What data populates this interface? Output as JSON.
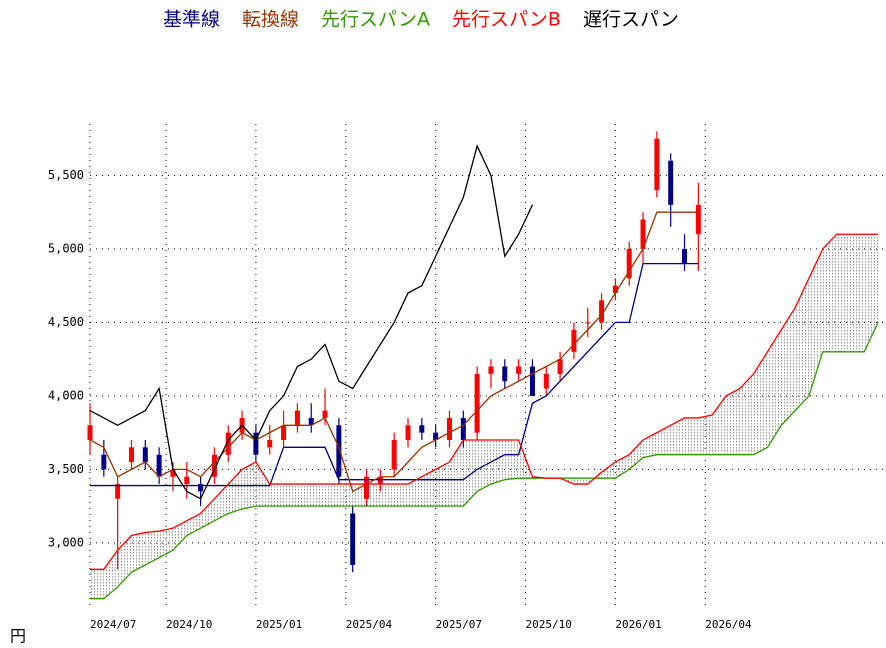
{
  "chart_data": {
    "type": "candlestick",
    "y_label": "円",
    "x": [
      0,
      2,
      4,
      6,
      8,
      10,
      12,
      14,
      16,
      18,
      20,
      22,
      24,
      26,
      28,
      30,
      32,
      34,
      36,
      38,
      40,
      42,
      44,
      46,
      48,
      50,
      52,
      54,
      56,
      58,
      60,
      62,
      64,
      66,
      68,
      70,
      72,
      74,
      76,
      78,
      80,
      82,
      84,
      86,
      88,
      90,
      92,
      94,
      96,
      98,
      100,
      102,
      104,
      106,
      108,
      110,
      112,
      114
    ],
    "xlim": [
      0,
      115
    ],
    "xticks": [
      {
        "value": 0,
        "label": "2024/07"
      },
      {
        "value": 11,
        "label": "2024/10"
      },
      {
        "value": 24,
        "label": "2025/01"
      },
      {
        "value": 37,
        "label": "2025/04"
      },
      {
        "value": 50,
        "label": "2025/07"
      },
      {
        "value": 63,
        "label": "2025/10"
      },
      {
        "value": 76,
        "label": "2026/01"
      },
      {
        "value": 89,
        "label": "2026/04"
      }
    ],
    "ylim": [
      2550,
      5850
    ],
    "yticks": [
      {
        "value": 3000,
        "label": "3,000"
      },
      {
        "value": 3500,
        "label": "3,500"
      },
      {
        "value": 4000,
        "label": "4,000"
      },
      {
        "value": 4500,
        "label": "4,500"
      },
      {
        "value": 5000,
        "label": "5,000"
      },
      {
        "value": 5500,
        "label": "5,500"
      }
    ],
    "grid": true,
    "up_color": "#ff0000",
    "down_color": "#000080",
    "candles": {
      "open": [
        3700,
        3600,
        3300,
        3550,
        3650,
        3600,
        3450,
        3400,
        3400,
        3450,
        3600,
        3750,
        3750,
        3650,
        3700,
        3800,
        3850,
        3850,
        3800,
        3200,
        3300,
        3400,
        3500,
        3700,
        3800,
        3750,
        3700,
        3850,
        3750,
        4150,
        4200,
        4150,
        4200,
        4050,
        4150,
        4300,
        4500,
        4500,
        4700,
        4800,
        5000,
        5400,
        5600,
        5000,
        5100,
        null,
        null,
        null,
        null,
        null,
        null,
        null,
        null,
        null,
        null,
        null,
        null,
        null
      ],
      "high": [
        3950,
        3700,
        3450,
        3700,
        3700,
        3650,
        3550,
        3550,
        3450,
        3650,
        3800,
        3900,
        3800,
        3800,
        3900,
        3950,
        3950,
        4050,
        3850,
        3250,
        3500,
        3500,
        3750,
        3850,
        3850,
        3800,
        3900,
        3900,
        4200,
        4250,
        4250,
        4250,
        4250,
        4200,
        4300,
        4500,
        4600,
        4700,
        4800,
        5050,
        5250,
        5800,
        5650,
        5100,
        5450,
        null,
        null,
        null,
        null,
        null,
        null,
        null,
        null,
        null,
        null,
        null,
        null,
        null
      ],
      "low": [
        3600,
        3450,
        2820,
        3500,
        3500,
        3400,
        3350,
        3300,
        3250,
        3400,
        3550,
        3700,
        3550,
        3600,
        3650,
        3750,
        3750,
        3800,
        3400,
        2800,
        3250,
        3350,
        3450,
        3650,
        3700,
        3650,
        3650,
        3650,
        3700,
        4050,
        4050,
        4100,
        4000,
        4000,
        4100,
        4250,
        4400,
        4450,
        4650,
        4750,
        4900,
        5350,
        5150,
        4850,
        4850,
        null,
        null,
        null,
        null,
        null,
        null,
        null,
        null,
        null,
        null,
        null,
        null,
        null
      ],
      "close": [
        3800,
        3500,
        3400,
        3650,
        3550,
        3450,
        3500,
        3450,
        3350,
        3600,
        3750,
        3850,
        3600,
        3700,
        3800,
        3900,
        3800,
        3900,
        3450,
        2850,
        3450,
        3450,
        3700,
        3800,
        3750,
        3700,
        3850,
        3700,
        4150,
        4200,
        4100,
        4200,
        4000,
        4150,
        4250,
        4450,
        4500,
        4650,
        4750,
        5000,
        5200,
        5750,
        5300,
        4900,
        5300,
        null,
        null,
        null,
        null,
        null,
        null,
        null,
        null,
        null,
        null,
        null,
        null,
        null
      ]
    },
    "series": [
      {
        "name": "基準線",
        "color": "#000080",
        "values": [
          3390,
          3390,
          3390,
          3390,
          3390,
          3390,
          3390,
          3390,
          3390,
          3390,
          3390,
          3390,
          3390,
          3390,
          3650,
          3650,
          3650,
          3650,
          3430,
          3430,
          3430,
          3430,
          3430,
          3430,
          3430,
          3430,
          3430,
          3430,
          3500,
          3550,
          3600,
          3600,
          3950,
          4000,
          4100,
          4200,
          4300,
          4400,
          4500,
          4500,
          4900,
          4900,
          4900,
          4900,
          4900,
          null,
          null,
          null,
          null,
          null,
          null,
          null,
          null,
          null,
          null,
          null,
          null,
          null
        ]
      },
      {
        "name": "転換線",
        "color": "#993300",
        "values": [
          3700,
          3650,
          3450,
          3500,
          3550,
          3450,
          3500,
          3500,
          3450,
          3550,
          3650,
          3750,
          3700,
          3750,
          3800,
          3800,
          3800,
          3850,
          3650,
          3350,
          3400,
          3450,
          3450,
          3550,
          3650,
          3700,
          3750,
          3800,
          3900,
          4000,
          4050,
          4100,
          4150,
          4200,
          4250,
          4350,
          4450,
          4550,
          4700,
          4850,
          5000,
          5250,
          5250,
          5250,
          5250,
          null,
          null,
          null,
          null,
          null,
          null,
          null,
          null,
          null,
          null,
          null,
          null,
          null
        ]
      },
      {
        "name": "先行スパンA",
        "color": "#339900",
        "values": [
          2620,
          2620,
          2700,
          2800,
          2850,
          2900,
          2950,
          3050,
          3100,
          3150,
          3200,
          3230,
          3250,
          3250,
          3250,
          3250,
          3250,
          3250,
          3250,
          3250,
          3250,
          3250,
          3250,
          3250,
          3250,
          3250,
          3250,
          3250,
          3350,
          3400,
          3430,
          3440,
          3440,
          3440,
          3440,
          3440,
          3440,
          3440,
          3440,
          3500,
          3580,
          3600,
          3600,
          3600,
          3600,
          3600,
          3600,
          3600,
          3600,
          3650,
          3800,
          3900,
          4000,
          4300,
          4300,
          4300,
          4300,
          4500
        ]
      },
      {
        "name": "先行スパンB",
        "color": "#ff0000",
        "values": [
          2820,
          2820,
          2950,
          3050,
          3070,
          3080,
          3100,
          3150,
          3200,
          3300,
          3400,
          3500,
          3550,
          3400,
          3400,
          3400,
          3400,
          3400,
          3400,
          3400,
          3400,
          3400,
          3400,
          3400,
          3450,
          3500,
          3550,
          3700,
          3700,
          3700,
          3700,
          3700,
          3450,
          3440,
          3440,
          3400,
          3400,
          3480,
          3550,
          3600,
          3700,
          3750,
          3800,
          3850,
          3850,
          3870,
          4000,
          4050,
          4150,
          4300,
          4450,
          4600,
          4800,
          5000,
          5100,
          5100,
          5100,
          5100
        ]
      },
      {
        "name": "遅行スパン",
        "color": "#000000",
        "values": [
          3900,
          3850,
          3800,
          3850,
          3900,
          4050,
          3500,
          3350,
          3300,
          3500,
          3700,
          3800,
          3700,
          3900,
          4000,
          4200,
          4250,
          4350,
          4100,
          4050,
          4200,
          4350,
          4500,
          4700,
          4750,
          4950,
          5150,
          5350,
          5700,
          5500,
          4950,
          5100,
          5300,
          null,
          null,
          null,
          null,
          null,
          null,
          null,
          null,
          null,
          null,
          null,
          null,
          null,
          null,
          null,
          null,
          null,
          null,
          null,
          null,
          null,
          null,
          null,
          null,
          null
        ]
      }
    ]
  }
}
